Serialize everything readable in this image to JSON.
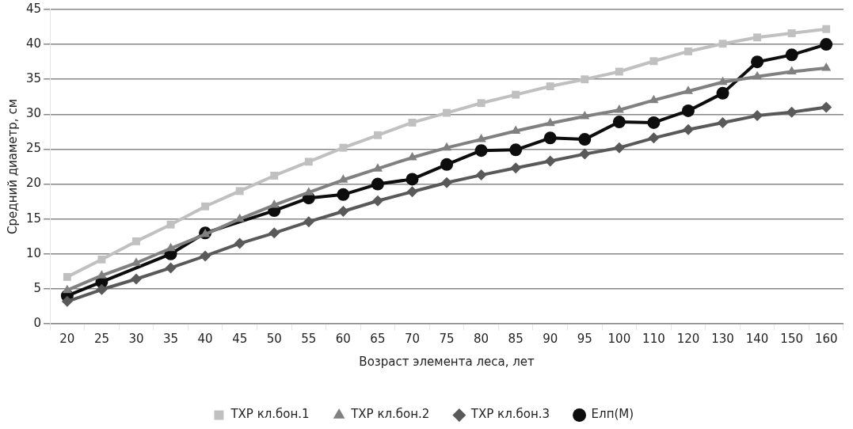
{
  "chart_data": {
    "type": "line",
    "xlabel": "Возраст элемента леса, лет",
    "ylabel": "Средний диаметр, см",
    "categories": [
      "20",
      "25",
      "30",
      "35",
      "40",
      "45",
      "50",
      "55",
      "60",
      "65",
      "70",
      "75",
      "80",
      "85",
      "90",
      "95",
      "100",
      "110",
      "120",
      "130",
      "140",
      "150",
      "160"
    ],
    "ylim": [
      0,
      45
    ],
    "yticks": [
      0,
      5,
      10,
      15,
      20,
      25,
      30,
      35,
      40,
      45
    ],
    "grid": "y",
    "legend": "bottom",
    "series": [
      {
        "name": "ТХР кл.бон.1",
        "color": "#c0c0c0",
        "marker": "square",
        "values": [
          6.7,
          9.2,
          11.8,
          14.2,
          16.8,
          19.0,
          21.2,
          23.2,
          25.2,
          27.0,
          28.8,
          30.2,
          31.6,
          32.8,
          34.0,
          35.0,
          36.1,
          37.6,
          39.0,
          40.1,
          41.0,
          41.6,
          42.2
        ]
      },
      {
        "name": "ТХР кл.бон.2",
        "color": "#808080",
        "marker": "triangle",
        "values": [
          4.8,
          6.9,
          8.7,
          10.8,
          12.8,
          15.0,
          17.0,
          18.8,
          20.6,
          22.2,
          23.8,
          25.2,
          26.4,
          27.6,
          28.7,
          29.7,
          30.6,
          32.0,
          33.3,
          34.6,
          35.4,
          36.1,
          36.6
        ]
      },
      {
        "name": "ТХР кл.бон.3",
        "color": "#595959",
        "marker": "diamond",
        "values": [
          3.2,
          4.9,
          6.4,
          8.0,
          9.7,
          11.5,
          13.0,
          14.6,
          16.1,
          17.6,
          18.9,
          20.2,
          21.3,
          22.3,
          23.3,
          24.3,
          25.2,
          26.6,
          27.8,
          28.8,
          29.8,
          30.3,
          31.0
        ]
      },
      {
        "name": "Елп(М)",
        "color": "#0d0d0d",
        "marker": "circle",
        "values": [
          4.0,
          6.0,
          null,
          10.0,
          13.0,
          null,
          16.2,
          18.0,
          18.5,
          20.0,
          20.7,
          22.8,
          24.8,
          24.9,
          26.6,
          26.4,
          28.9,
          28.8,
          30.5,
          33.0,
          37.5,
          38.5,
          40.0
        ]
      }
    ]
  }
}
